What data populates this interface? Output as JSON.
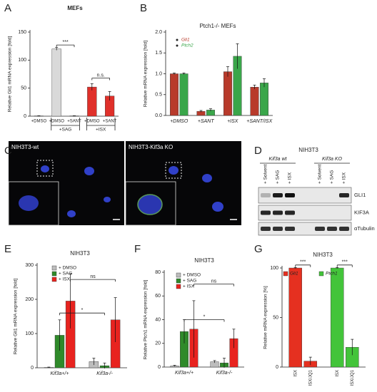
{
  "panel_labels": [
    "A",
    "B",
    "C",
    "D",
    "E",
    "F",
    "G"
  ],
  "chart_data": [
    {
      "type": "bar",
      "title": "MEFs",
      "y_label": "Relative Gli1 mRNA expression [fold]",
      "categories": [
        "+DMSO",
        "+DMSO",
        "+SANT",
        "+DMSO",
        "+SANT"
      ],
      "groups": [
        {
          "label": "+SAG",
          "members": [
            1,
            2
          ]
        },
        {
          "label": "+ISX",
          "members": [
            3,
            4
          ]
        }
      ],
      "values": [
        0.5,
        120,
        0.5,
        52,
        36
      ],
      "errors": [
        0.3,
        2.5,
        0.3,
        6,
        8
      ],
      "colors": [
        "#cfcfcf",
        "#d9d9d9",
        "#cfcfcf",
        "#e0302a",
        "#e0302a"
      ],
      "ylim": [
        0,
        150
      ],
      "yticks": [
        0,
        50,
        100,
        150
      ],
      "annotations": [
        "***",
        "n.s."
      ]
    },
    {
      "type": "grouped-bar",
      "title": "Ptch1-/- MEFs",
      "y_label": "Relative mRNA expression [fold]",
      "categories": [
        "+DMSO",
        "+SANT",
        "+ISX",
        "+SANT/ISX"
      ],
      "series": [
        {
          "name": "Gli1",
          "color": "#b83a2b",
          "values": [
            1,
            0.1,
            1.05,
            0.68
          ],
          "errors": [
            0.02,
            0.02,
            0.12,
            0.05
          ]
        },
        {
          "name": "Ptch2",
          "color": "#3aa64a",
          "values": [
            1,
            0.13,
            1.42,
            0.78
          ],
          "errors": [
            0.02,
            0.03,
            0.3,
            0.1
          ]
        }
      ],
      "ylim": [
        0,
        2
      ],
      "yticks": [
        {
          "value": 0,
          "label": "0.0"
        },
        0.5,
        {
          "value": 1,
          "label": "1.0"
        },
        1.5,
        {
          "value": 2,
          "label": "2.0"
        }
      ],
      "legend": "upper left",
      "legend_marker": "dot",
      "annotations": []
    },
    {
      "type": "grouped-bar",
      "title": "NIH3T3",
      "y_label": "Relative Gli1 mRNA expression [fold]",
      "categories": [
        "Kif3a+/+",
        "Kif3a-/-"
      ],
      "series": [
        {
          "name": "+ DMSO",
          "color": "#bdbdbd",
          "values": [
            1,
            18
          ],
          "errors": [
            1,
            10
          ]
        },
        {
          "name": "+ SAG",
          "color": "#2f8a2a",
          "values": [
            95,
            6
          ],
          "errors": [
            45,
            8
          ]
        },
        {
          "name": "+ ISX",
          "color": "#e8231f",
          "values": [
            195,
            140
          ],
          "errors": [
            80,
            65
          ]
        }
      ],
      "ylim": [
        0,
        300
      ],
      "yticks": [
        0,
        100,
        200,
        300
      ],
      "legend": "upper left",
      "legend_marker": "square",
      "annotations": [
        "ns",
        "*"
      ]
    },
    {
      "type": "grouped-bar",
      "title": "NIH3T3",
      "y_label": "Relative Ptch1 mRNA expression [fold]",
      "categories": [
        "Kif3a+/+",
        "Kif3a-/-"
      ],
      "series": [
        {
          "name": "+ DMSO",
          "color": "#bdbdbd",
          "values": [
            1,
            4.5
          ],
          "errors": [
            0.5,
            1
          ]
        },
        {
          "name": "+ SAG",
          "color": "#2f8a2a",
          "values": [
            30,
            3.5
          ],
          "errors": [
            10,
            4
          ]
        },
        {
          "name": "+ ISX",
          "color": "#e8231f",
          "values": [
            32,
            24
          ],
          "errors": [
            24,
            8
          ]
        }
      ],
      "ylim": [
        0,
        80
      ],
      "yticks": [
        0,
        20,
        40,
        60,
        80
      ],
      "legend": "upper left",
      "legend_marker": "square",
      "annotations": [
        "ns",
        "*"
      ]
    },
    {
      "type": "grouped-bar",
      "title": "NIH3T3",
      "y_label": "Relative mRNA expression [%]",
      "categories": [
        "ISX",
        "ISX/JQ1"
      ],
      "x_grouping": "series",
      "series": [
        {
          "name": "Gli1",
          "color": "#e53020",
          "values": [
            100,
            6
          ],
          "errors": [
            0.5,
            4
          ]
        },
        {
          "name": "Ptch1",
          "color": "#43c43a",
          "values": [
            100,
            20
          ],
          "errors": [
            0.5,
            8
          ]
        }
      ],
      "ylim": [
        0,
        100
      ],
      "yticks": [
        0,
        50,
        100
      ],
      "legend": "upper left",
      "legend_marker": "square",
      "annotations": [
        "***",
        "***"
      ]
    }
  ],
  "microscopy": {
    "labels": [
      "NIH3T3-wt",
      "NIH3T3-Kif3a KO"
    ]
  },
  "western_blot": {
    "title": "NIH3T3",
    "groups": [
      {
        "label": "Kif3a wt",
        "lanes": [
          "+ Solvent",
          "+ SAG",
          "+ ISX"
        ]
      },
      {
        "label": "Kif3a KO",
        "lanes": [
          "+ Solvent",
          "+ SAG",
          "+ ISX"
        ]
      }
    ],
    "bands": [
      "GLI1",
      "KIF3A",
      "αTubulin"
    ]
  }
}
